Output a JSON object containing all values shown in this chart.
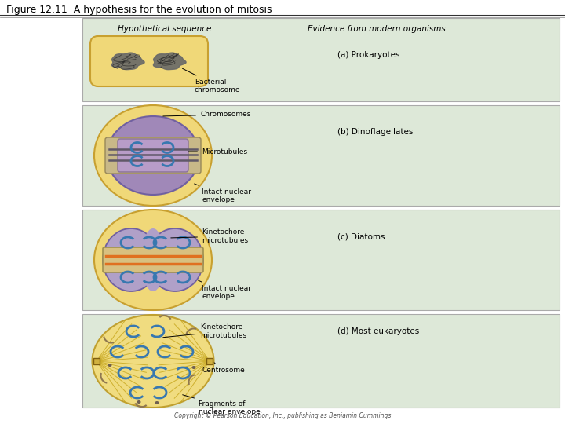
{
  "title": "Figure 12.11  A hypothesis for the evolution of mitosis",
  "bg_color": "#ffffff",
  "panel_bg": "#dde8d8",
  "cell_yellow": "#f0d878",
  "cell_yellow_edge": "#c8a030",
  "nuclear_purple": "#a088b8",
  "nuclear_purple_light": "#c0aed0",
  "nuclear_edge": "#7060a0",
  "spindle_tan": "#d8c898",
  "spindle_tan_edge": "#a89060",
  "chromosome_blue": "#3878b0",
  "prokaryote_chr": "#404040",
  "orange_line": "#e07020",
  "copyright_text": "Copyright © Pearson Education, Inc., publishing as Benjamin Cummings",
  "header_left": "Hypothetical sequence",
  "header_right": "Evidence from modern organisms",
  "label_a1": "Bacterial\nchromosome",
  "label_a2": "(a) Prokaryotes",
  "label_b1": "Chromosomes",
  "label_b2": "Microtubules",
  "label_b3": "Intact nuclear\nenvelope",
  "label_b4": "(b) Dinoflagellates",
  "label_c1": "Kinetochore\nmicrotubules",
  "label_c2": "Intact nuclear\nenvelope",
  "label_c3": "(c) Diatoms",
  "label_d1": "Kinetochore\nmicrotubules",
  "label_d2": "Centrosome",
  "label_d3": "Fragments of\nnuclear envelope",
  "label_d4": "(d) Most eukaryotes"
}
